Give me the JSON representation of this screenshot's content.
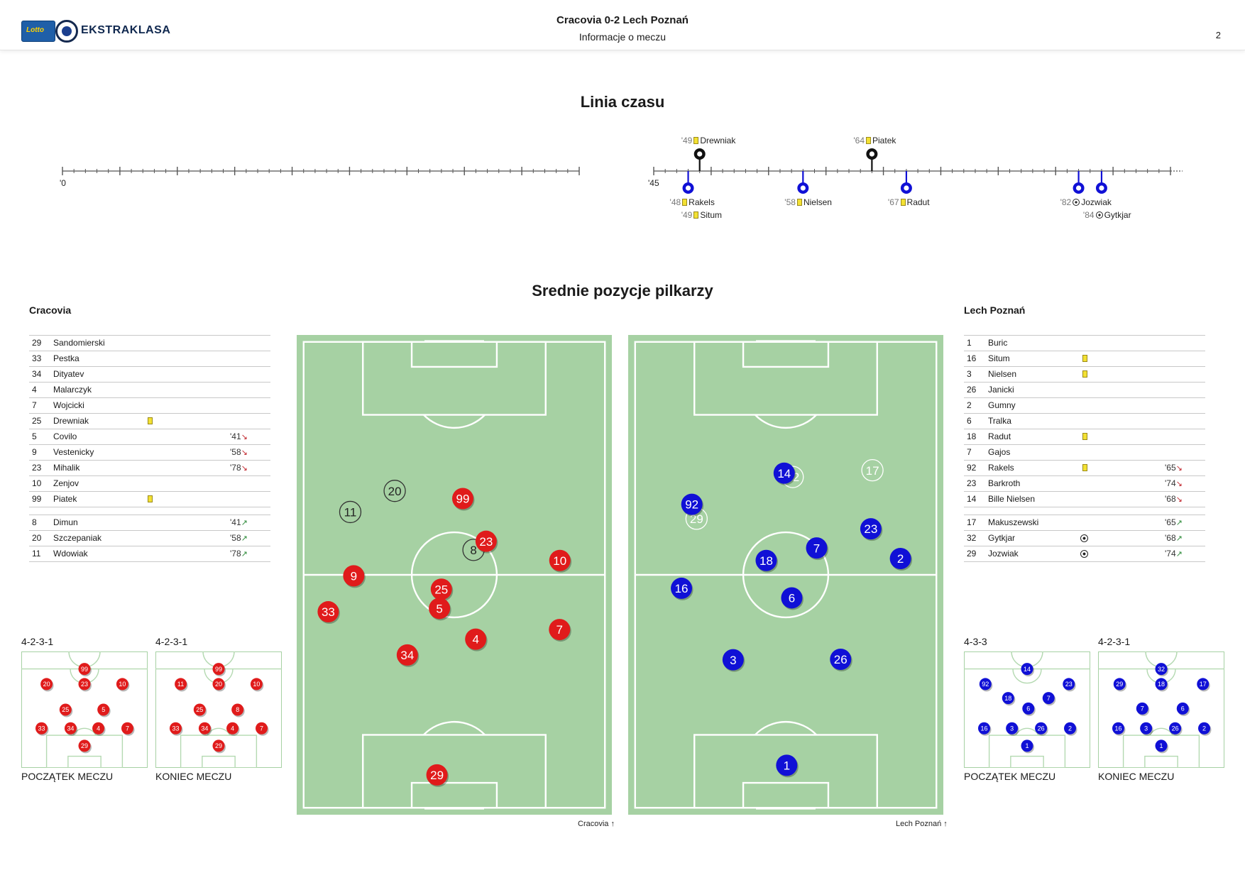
{
  "header": {
    "logo_text": "EKSTRAKLASA",
    "logo_lotto": "Lotto",
    "title": "Cracovia 0-2 Lech Poznań",
    "subtitle": "Informacje o meczu",
    "page_number": "2"
  },
  "timeline": {
    "title": "Linia czasu",
    "half1_start_label": "'0",
    "half2_start_label": "'45",
    "events": [
      {
        "minute": "'48",
        "player": "Rakels",
        "team": "away",
        "type": "yellow",
        "min_value": 48,
        "row": 1
      },
      {
        "minute": "'49",
        "player": "Situm",
        "team": "away",
        "type": "yellow",
        "min_value": 49,
        "row": 2
      },
      {
        "minute": "'49",
        "player": "Drewniak",
        "team": "home",
        "type": "yellow",
        "min_value": 49,
        "row": 1
      },
      {
        "minute": "'58",
        "player": "Nielsen",
        "team": "away",
        "type": "yellow",
        "min_value": 58,
        "row": 1
      },
      {
        "minute": "'64",
        "player": "Piatek",
        "team": "home",
        "type": "yellow",
        "min_value": 64,
        "row": 1
      },
      {
        "minute": "'67",
        "player": "Radut",
        "team": "away",
        "type": "yellow",
        "min_value": 67,
        "row": 1
      },
      {
        "minute": "'82",
        "player": "Jozwiak",
        "team": "away",
        "type": "goal",
        "min_value": 82,
        "row": 1
      },
      {
        "minute": "'84",
        "player": "Gytkjar",
        "team": "away",
        "type": "goal",
        "min_value": 84,
        "row": 2
      }
    ]
  },
  "positions": {
    "title": "Srednie pozycje pilkarzy",
    "home_caption": "Cracovia",
    "away_caption": "Lech Poznań"
  },
  "home": {
    "name": "Cracovia",
    "starters": [
      {
        "num": "29",
        "name": "Sandomierski"
      },
      {
        "num": "33",
        "name": "Pestka"
      },
      {
        "num": "34",
        "name": "Dityatev"
      },
      {
        "num": "4",
        "name": "Malarczyk"
      },
      {
        "num": "7",
        "name": "Wojcicki"
      },
      {
        "num": "25",
        "name": "Drewniak",
        "card": "yellow"
      },
      {
        "num": "5",
        "name": "Covilo",
        "sub": "'41",
        "sub_dir": "out"
      },
      {
        "num": "9",
        "name": "Vestenicky",
        "sub": "'58",
        "sub_dir": "out"
      },
      {
        "num": "23",
        "name": "Mihalik",
        "sub": "'78",
        "sub_dir": "out"
      },
      {
        "num": "10",
        "name": "Zenjov"
      },
      {
        "num": "99",
        "name": "Piatek",
        "card": "yellow"
      }
    ],
    "subs": [
      {
        "num": "8",
        "name": "Dimun",
        "sub": "'41",
        "sub_dir": "in"
      },
      {
        "num": "20",
        "name": "Szczepaniak",
        "sub": "'58",
        "sub_dir": "in"
      },
      {
        "num": "11",
        "name": "Wdowiak",
        "sub": "'78",
        "sub_dir": "in"
      }
    ],
    "formation_start": "4-2-3-1",
    "formation_end": "4-2-3-1",
    "start_caption": "POCZĄTEK MECZU",
    "end_caption": "KONIEC MECZU",
    "color": "#e01b1b"
  },
  "away": {
    "name": "Lech Poznań",
    "starters": [
      {
        "num": "1",
        "name": "Buric"
      },
      {
        "num": "16",
        "name": "Situm",
        "card": "yellow"
      },
      {
        "num": "3",
        "name": "Nielsen",
        "card": "yellow"
      },
      {
        "num": "26",
        "name": "Janicki"
      },
      {
        "num": "2",
        "name": "Gumny"
      },
      {
        "num": "6",
        "name": "Tralka"
      },
      {
        "num": "18",
        "name": "Radut",
        "card": "yellow"
      },
      {
        "num": "7",
        "name": "Gajos"
      },
      {
        "num": "92",
        "name": "Rakels",
        "card": "yellow",
        "sub": "'65",
        "sub_dir": "out"
      },
      {
        "num": "23",
        "name": "Barkroth",
        "sub": "'74",
        "sub_dir": "out"
      },
      {
        "num": "14",
        "name": "Bille Nielsen",
        "sub": "'68",
        "sub_dir": "out"
      }
    ],
    "subs": [
      {
        "num": "17",
        "name": "Makuszewski",
        "sub": "'65",
        "sub_dir": "in"
      },
      {
        "num": "32",
        "name": "Gytkjar",
        "goal": true,
        "sub": "'68",
        "sub_dir": "in"
      },
      {
        "num": "29",
        "name": "Jozwiak",
        "goal": true,
        "sub": "'74",
        "sub_dir": "in"
      }
    ],
    "formation_start": "4-3-3",
    "formation_end": "4-2-3-1",
    "start_caption": "POCZĄTEK MECZU",
    "end_caption": "KONIEC MECZU",
    "color": "#1010d6"
  },
  "colors": {
    "pitch": "#a6d1a3",
    "home": "#e01b1b",
    "away": "#1010d6",
    "sub_marker": "#ffffff"
  }
}
